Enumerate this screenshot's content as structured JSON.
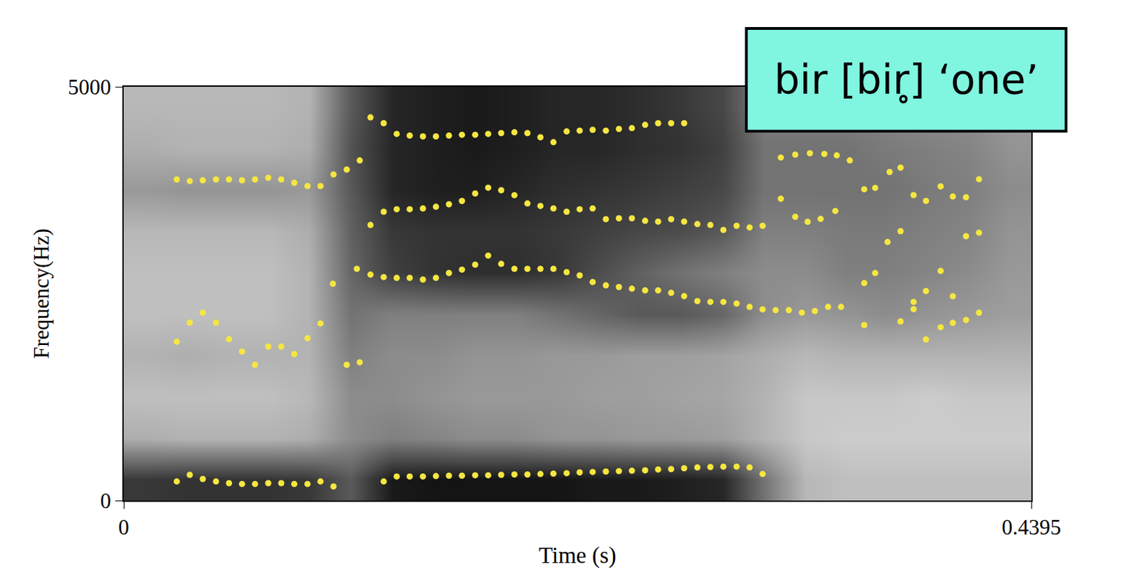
{
  "chart_data": {
    "type": "heatmap",
    "x_label": "Time (s)",
    "y_label": "Frequency(Hz)",
    "xlim": [
      0,
      0.4395
    ],
    "ylim": [
      0,
      5000
    ],
    "xticks": [
      0,
      0.4395
    ],
    "yticks": [
      0,
      5000
    ],
    "annotations": [
      {
        "text": "bir [bir̥] ‘one’"
      }
    ],
    "cells": {
      "x": [
        0.01,
        0.03,
        0.05,
        0.07,
        0.09,
        0.11,
        0.13,
        0.15,
        0.17,
        0.19,
        0.21,
        0.23,
        0.25,
        0.27,
        0.29,
        0.31,
        0.33,
        0.35,
        0.37,
        0.39,
        0.41,
        0.43
      ],
      "y": [
        250,
        750,
        1250,
        1750,
        2250,
        2750,
        3250,
        3750,
        4250,
        4750
      ],
      "z": [
        [
          0.78,
          0.8,
          0.8,
          0.8,
          0.78,
          0.65,
          0.9,
          0.92,
          0.92,
          0.92,
          0.92,
          0.9,
          0.9,
          0.88,
          0.85,
          0.55,
          0.28,
          0.25,
          0.25,
          0.25,
          0.25,
          0.25
        ],
        [
          0.32,
          0.3,
          0.3,
          0.3,
          0.32,
          0.45,
          0.5,
          0.48,
          0.45,
          0.45,
          0.42,
          0.42,
          0.4,
          0.4,
          0.38,
          0.3,
          0.22,
          0.2,
          0.2,
          0.2,
          0.2,
          0.2
        ],
        [
          0.25,
          0.25,
          0.25,
          0.25,
          0.28,
          0.45,
          0.45,
          0.42,
          0.4,
          0.4,
          0.4,
          0.38,
          0.38,
          0.36,
          0.35,
          0.3,
          0.22,
          0.22,
          0.22,
          0.2,
          0.22,
          0.22
        ],
        [
          0.3,
          0.32,
          0.3,
          0.3,
          0.3,
          0.5,
          0.45,
          0.45,
          0.42,
          0.42,
          0.4,
          0.4,
          0.38,
          0.38,
          0.36,
          0.32,
          0.28,
          0.3,
          0.3,
          0.3,
          0.3,
          0.3
        ],
        [
          0.25,
          0.25,
          0.25,
          0.25,
          0.3,
          0.55,
          0.5,
          0.5,
          0.5,
          0.5,
          0.55,
          0.6,
          0.65,
          0.65,
          0.6,
          0.45,
          0.4,
          0.42,
          0.45,
          0.42,
          0.4,
          0.38
        ],
        [
          0.25,
          0.25,
          0.25,
          0.25,
          0.3,
          0.6,
          0.75,
          0.8,
          0.82,
          0.82,
          0.78,
          0.7,
          0.62,
          0.55,
          0.5,
          0.45,
          0.45,
          0.5,
          0.5,
          0.48,
          0.45,
          0.4
        ],
        [
          0.28,
          0.28,
          0.28,
          0.28,
          0.32,
          0.62,
          0.78,
          0.8,
          0.8,
          0.8,
          0.78,
          0.75,
          0.72,
          0.7,
          0.65,
          0.5,
          0.5,
          0.52,
          0.52,
          0.5,
          0.48,
          0.42
        ],
        [
          0.4,
          0.42,
          0.42,
          0.42,
          0.4,
          0.65,
          0.85,
          0.88,
          0.88,
          0.85,
          0.82,
          0.8,
          0.78,
          0.75,
          0.72,
          0.55,
          0.55,
          0.55,
          0.55,
          0.52,
          0.5,
          0.45
        ],
        [
          0.32,
          0.3,
          0.3,
          0.3,
          0.32,
          0.68,
          0.85,
          0.88,
          0.9,
          0.88,
          0.85,
          0.85,
          0.82,
          0.8,
          0.75,
          0.55,
          0.55,
          0.55,
          0.52,
          0.5,
          0.48,
          0.42
        ],
        [
          0.28,
          0.28,
          0.28,
          0.28,
          0.3,
          0.65,
          0.85,
          0.88,
          0.9,
          0.88,
          0.85,
          0.85,
          0.82,
          0.78,
          0.72,
          0.5,
          0.5,
          0.5,
          0.48,
          0.45,
          0.45,
          0.4
        ]
      ]
    },
    "zlim": [
      0,
      1
    ],
    "series": [
      {
        "type": "scatter",
        "marker": "circle",
        "color": "#f5e642",
        "x": [
          0.0257,
          0.032,
          0.0383,
          0.0447,
          0.051,
          0.0573,
          0.0636,
          0.07,
          0.0763,
          0.0826,
          0.089,
          0.0953,
          0.1016
        ],
        "values": [
          230,
          310,
          260,
          230,
          210,
          200,
          200,
          210,
          210,
          200,
          200,
          230,
          170
        ]
      },
      {
        "type": "scatter",
        "marker": "circle",
        "color": "#f5e642",
        "x": [
          0.0257,
          0.032,
          0.0383,
          0.0447,
          0.051,
          0.0573,
          0.0636,
          0.07,
          0.0763,
          0.0826,
          0.089,
          0.0953,
          0.108,
          0.1143
        ],
        "values": [
          1920,
          2150,
          2270,
          2150,
          1950,
          1800,
          1640,
          1860,
          1860,
          1770,
          1960,
          2140,
          1640,
          1670
        ]
      },
      {
        "type": "scatter",
        "marker": "circle",
        "color": "#f5e642",
        "x": [
          0.1013,
          0.1129
        ],
        "values": [
          2620,
          2800
        ]
      },
      {
        "type": "scatter",
        "marker": "circle",
        "color": "#f5e642",
        "x": [
          0.0257,
          0.032,
          0.0383,
          0.0447,
          0.051,
          0.0573,
          0.0636,
          0.07,
          0.0763,
          0.0826,
          0.089,
          0.0953,
          0.1016,
          0.108,
          0.1143
        ],
        "values": [
          3880,
          3860,
          3870,
          3880,
          3880,
          3870,
          3880,
          3900,
          3880,
          3840,
          3800,
          3800,
          3940,
          4000,
          4110
        ]
      },
      {
        "type": "scatter",
        "marker": "circle",
        "color": "#f5e642",
        "x": [
          0.1259,
          0.1322,
          0.1385,
          0.1449,
          0.1512,
          0.1575,
          0.1638,
          0.1702,
          0.1765,
          0.1828,
          0.1892,
          0.1955,
          0.2018,
          0.2081,
          0.2145,
          0.2208,
          0.2271,
          0.2335,
          0.2398,
          0.2461,
          0.2525,
          0.2588,
          0.2651,
          0.2714,
          0.2778,
          0.2841,
          0.2904,
          0.2968,
          0.3031,
          0.3094
        ],
        "values": [
          230,
          290,
          290,
          290,
          295,
          300,
          300,
          305,
          305,
          310,
          315,
          315,
          320,
          325,
          330,
          340,
          345,
          350,
          355,
          360,
          365,
          375,
          380,
          390,
          400,
          405,
          410,
          410,
          400,
          320
        ]
      },
      {
        "type": "scatter",
        "marker": "circle",
        "color": "#f5e642",
        "x": [
          0.1195,
          0.1259,
          0.1322,
          0.1385,
          0.1449,
          0.1512,
          0.1575,
          0.1638,
          0.1702,
          0.1765,
          0.1828,
          0.1892,
          0.1955,
          0.2018,
          0.2081,
          0.2145,
          0.2208,
          0.2271,
          0.2335,
          0.2398,
          0.2461,
          0.2525,
          0.2588,
          0.2651,
          0.2714,
          0.2778,
          0.2841,
          0.2904,
          0.2968,
          0.3031,
          0.3094,
          0.3157,
          0.3221,
          0.3284,
          0.3347,
          0.3411,
          0.3474
        ],
        "values": [
          2730,
          2700,
          2690,
          2690,
          2670,
          2690,
          2750,
          2790,
          2850,
          2960,
          2860,
          2800,
          2800,
          2800,
          2800,
          2760,
          2720,
          2640,
          2600,
          2580,
          2560,
          2540,
          2540,
          2510,
          2470,
          2410,
          2400,
          2400,
          2380,
          2340,
          2310,
          2300,
          2300,
          2270,
          2290,
          2340,
          2340
        ]
      },
      {
        "type": "scatter",
        "marker": "circle",
        "color": "#f5e642",
        "x": [
          0.1195,
          0.1259,
          0.1322,
          0.1385,
          0.1449,
          0.1512,
          0.1575,
          0.1638,
          0.1702,
          0.1765,
          0.1828,
          0.1892,
          0.1955,
          0.2018,
          0.2081,
          0.2145,
          0.2208,
          0.2271,
          0.2335,
          0.2398,
          0.2461,
          0.2525,
          0.2588,
          0.2651,
          0.2714,
          0.2778,
          0.2841,
          0.2904,
          0.2968,
          0.3031,
          0.3094
        ],
        "values": [
          3330,
          3490,
          3520,
          3520,
          3530,
          3550,
          3580,
          3620,
          3710,
          3780,
          3750,
          3690,
          3590,
          3560,
          3530,
          3490,
          3520,
          3530,
          3400,
          3410,
          3410,
          3380,
          3370,
          3400,
          3370,
          3340,
          3330,
          3270,
          3320,
          3300,
          3320
        ]
      },
      {
        "type": "scatter",
        "marker": "circle",
        "color": "#f5e642",
        "x": [
          0.1195,
          0.1259,
          0.1322,
          0.1385,
          0.1449,
          0.1512,
          0.1575,
          0.1638,
          0.1702,
          0.1765,
          0.1828,
          0.1892,
          0.1955,
          0.2018,
          0.2081,
          0.2145,
          0.2208,
          0.2271,
          0.2335,
          0.2398,
          0.2461,
          0.2525,
          0.2588,
          0.2651,
          0.2714
        ],
        "values": [
          4630,
          4560,
          4430,
          4410,
          4400,
          4400,
          4410,
          4420,
          4420,
          4430,
          4440,
          4450,
          4440,
          4390,
          4330,
          4460,
          4470,
          4480,
          4470,
          4490,
          4500,
          4540,
          4560,
          4560,
          4560
        ]
      },
      {
        "type": "scatter",
        "marker": "circle",
        "color": "#f5e642",
        "x": [
          0.3182,
          0.3252,
          0.3312,
          0.3375,
          0.3446,
          0.3182,
          0.3252,
          0.3323,
          0.3393,
          0.3453,
          0.3516,
          0.3586,
          0.3639,
          0.3709,
          0.3762,
          0.3825,
          0.3885,
          0.3956,
          0.4015,
          0.4079,
          0.4142,
          0.3586,
          0.3639,
          0.3699,
          0.3762,
          0.3825,
          0.3885,
          0.3956,
          0.4015,
          0.4079,
          0.4142,
          0.3586,
          0.3762,
          0.3825,
          0.3885,
          0.3956,
          0.4015,
          0.4079,
          0.4142
        ],
        "values": [
          3647,
          3429,
          3368,
          3403,
          3499,
          4145,
          4180,
          4197,
          4188,
          4171,
          4110,
          3761,
          3778,
          3970,
          4023,
          3691,
          3621,
          3796,
          3674,
          3665,
          3883,
          2627,
          2749,
          3124,
          3255,
          2400,
          2531,
          2775,
          2469,
          3194,
          3237,
          2120,
          2164,
          2312,
          1946,
          2094,
          2147,
          2182,
          2269
        ]
      }
    ]
  }
}
